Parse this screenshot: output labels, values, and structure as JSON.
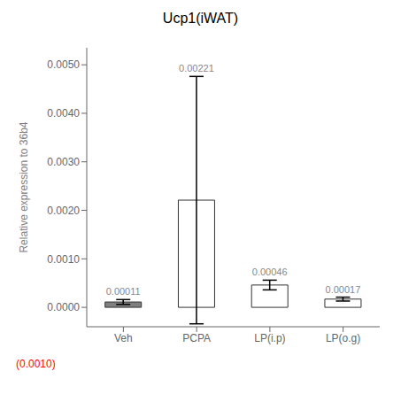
{
  "chart_data": {
    "type": "bar",
    "title": "Ucp1(iWAT)",
    "ylabel": "Relative expression to 36b4",
    "categories": [
      "Veh",
      "PCPA",
      "LP(i.p)",
      "LP(o.g)"
    ],
    "values": [
      0.00011,
      0.00221,
      0.00046,
      0.00017
    ],
    "errors": [
      5e-05,
      0.00255,
      0.0001,
      4e-05
    ],
    "value_labels": [
      "0.00011",
      "0.00221",
      "0.00046",
      "0.00017"
    ],
    "data_labels": true,
    "colors": [
      "#808080",
      "#ffffff",
      "#ffffff",
      "#ffffff"
    ],
    "ylim": [
      -0.0004,
      0.00535
    ],
    "yticks": [
      {
        "value": 0.0,
        "label": "0.0000"
      },
      {
        "value": 0.001,
        "label": "0.0010"
      },
      {
        "value": 0.002,
        "label": "0.0020"
      },
      {
        "value": 0.003,
        "label": "0.0030"
      },
      {
        "value": 0.004,
        "label": "0.0040"
      },
      {
        "value": 0.005,
        "label": "0.0050"
      }
    ],
    "grid": false,
    "annotations": [
      {
        "text": "(0.0010)",
        "color": "#ff0000"
      }
    ]
  }
}
